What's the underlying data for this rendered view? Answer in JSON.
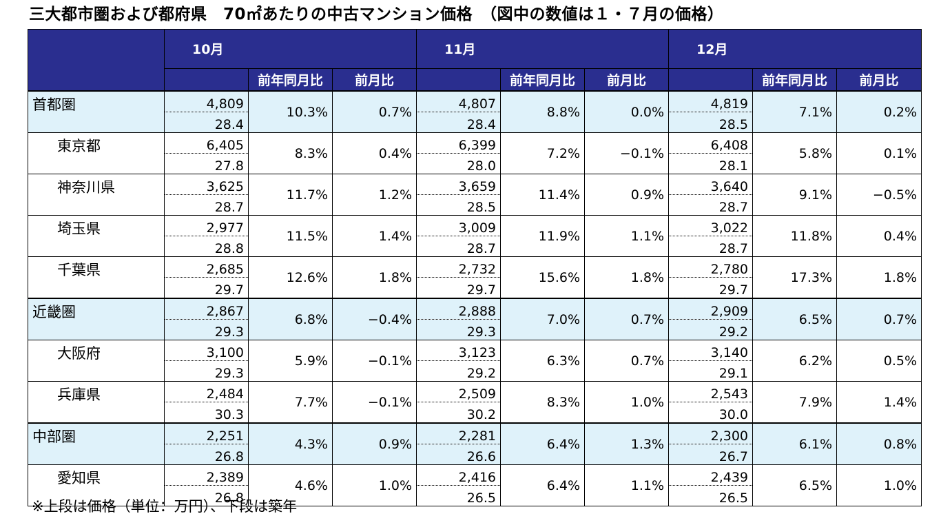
{
  "title": "三大都市圏および都府県　70㎡あたりの中古マンション価格　（図中の数値は１・７月の価格）",
  "footnote": "※上段は価格（単位：万円）、下段は築年",
  "months": [
    "10月",
    "11月",
    "12月"
  ],
  "sub_headers": {
    "yoy": "前年同月比",
    "mom": "前月比"
  },
  "rows": [
    {
      "name": "首都圏",
      "level": "region",
      "m": [
        {
          "price": "4,809",
          "age": "28.4",
          "yoy": "10.3%",
          "mom": "0.7%"
        },
        {
          "price": "4,807",
          "age": "28.4",
          "yoy": "8.8%",
          "mom": "0.0%"
        },
        {
          "price": "4,819",
          "age": "28.5",
          "yoy": "7.1%",
          "mom": "0.2%"
        }
      ]
    },
    {
      "name": "東京都",
      "level": "sub",
      "m": [
        {
          "price": "6,405",
          "age": "27.8",
          "yoy": "8.3%",
          "mom": "0.4%"
        },
        {
          "price": "6,399",
          "age": "28.0",
          "yoy": "7.2%",
          "mom": "−0.1%"
        },
        {
          "price": "6,408",
          "age": "28.1",
          "yoy": "5.8%",
          "mom": "0.1%"
        }
      ]
    },
    {
      "name": "神奈川県",
      "level": "sub",
      "m": [
        {
          "price": "3,625",
          "age": "28.7",
          "yoy": "11.7%",
          "mom": "1.2%"
        },
        {
          "price": "3,659",
          "age": "28.5",
          "yoy": "11.4%",
          "mom": "0.9%"
        },
        {
          "price": "3,640",
          "age": "28.7",
          "yoy": "9.1%",
          "mom": "−0.5%"
        }
      ]
    },
    {
      "name": "埼玉県",
      "level": "sub",
      "m": [
        {
          "price": "2,977",
          "age": "28.8",
          "yoy": "11.5%",
          "mom": "1.4%"
        },
        {
          "price": "3,009",
          "age": "28.7",
          "yoy": "11.9%",
          "mom": "1.1%"
        },
        {
          "price": "3,022",
          "age": "28.7",
          "yoy": "11.8%",
          "mom": "0.4%"
        }
      ]
    },
    {
      "name": "千葉県",
      "level": "sub",
      "m": [
        {
          "price": "2,685",
          "age": "29.7",
          "yoy": "12.6%",
          "mom": "1.8%"
        },
        {
          "price": "2,732",
          "age": "29.7",
          "yoy": "15.6%",
          "mom": "1.8%"
        },
        {
          "price": "2,780",
          "age": "29.7",
          "yoy": "17.3%",
          "mom": "1.8%"
        }
      ]
    },
    {
      "name": "近畿圏",
      "level": "region",
      "m": [
        {
          "price": "2,867",
          "age": "29.3",
          "yoy": "6.8%",
          "mom": "−0.4%"
        },
        {
          "price": "2,888",
          "age": "29.3",
          "yoy": "7.0%",
          "mom": "0.7%"
        },
        {
          "price": "2,909",
          "age": "29.2",
          "yoy": "6.5%",
          "mom": "0.7%"
        }
      ]
    },
    {
      "name": "大阪府",
      "level": "sub",
      "m": [
        {
          "price": "3,100",
          "age": "29.3",
          "yoy": "5.9%",
          "mom": "−0.1%"
        },
        {
          "price": "3,123",
          "age": "29.2",
          "yoy": "6.3%",
          "mom": "0.7%"
        },
        {
          "price": "3,140",
          "age": "29.1",
          "yoy": "6.2%",
          "mom": "0.5%"
        }
      ]
    },
    {
      "name": "兵庫県",
      "level": "sub",
      "m": [
        {
          "price": "2,484",
          "age": "30.3",
          "yoy": "7.7%",
          "mom": "−0.1%"
        },
        {
          "price": "2,509",
          "age": "30.2",
          "yoy": "8.3%",
          "mom": "1.0%"
        },
        {
          "price": "2,543",
          "age": "30.0",
          "yoy": "7.9%",
          "mom": "1.4%"
        }
      ]
    },
    {
      "name": "中部圏",
      "level": "region",
      "m": [
        {
          "price": "2,251",
          "age": "26.8",
          "yoy": "4.3%",
          "mom": "0.9%"
        },
        {
          "price": "2,281",
          "age": "26.6",
          "yoy": "6.4%",
          "mom": "1.3%"
        },
        {
          "price": "2,300",
          "age": "26.7",
          "yoy": "6.1%",
          "mom": "0.8%"
        }
      ]
    },
    {
      "name": "愛知県",
      "level": "sub",
      "m": [
        {
          "price": "2,389",
          "age": "26.8",
          "yoy": "4.6%",
          "mom": "1.0%"
        },
        {
          "price": "2,416",
          "age": "26.5",
          "yoy": "6.4%",
          "mom": "1.1%"
        },
        {
          "price": "2,439",
          "age": "26.5",
          "yoy": "6.5%",
          "mom": "1.0%"
        }
      ]
    }
  ]
}
